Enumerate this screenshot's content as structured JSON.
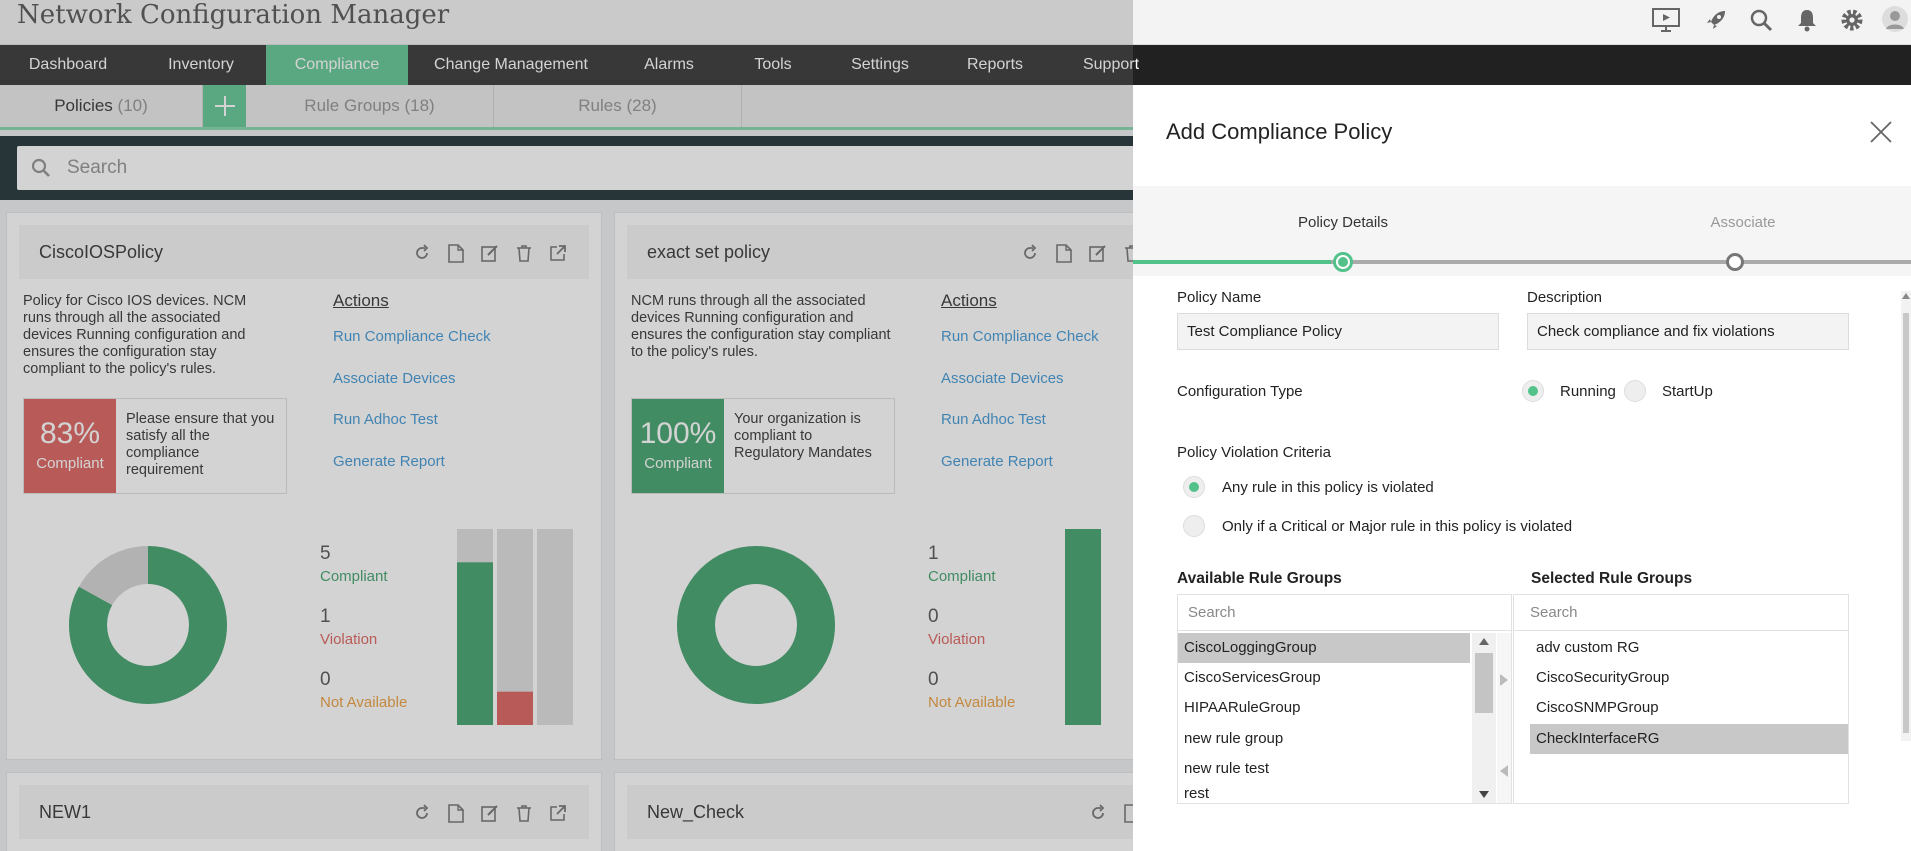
{
  "app": {
    "title": "Network Configuration Manager"
  },
  "top_icons": [
    "presentation-icon",
    "rocket-icon",
    "search-icon",
    "bell-icon",
    "gear-icon",
    "user-icon"
  ],
  "nav": {
    "items": [
      "Dashboard",
      "Inventory",
      "Compliance",
      "Change Management",
      "Alarms",
      "Tools",
      "Settings",
      "Reports",
      "Support"
    ],
    "active": "Compliance"
  },
  "subtabs": {
    "policies": {
      "label": "Policies",
      "count": "(10)"
    },
    "rule_groups": {
      "label": "Rule Groups",
      "count": "(18)"
    },
    "rules": {
      "label": "Rules",
      "count": "(28)"
    }
  },
  "search": {
    "placeholder": "Search"
  },
  "cards": [
    {
      "title": "CiscoIOSPolicy",
      "description": "Policy for Cisco IOS devices. NCM runs through all the associated devices Running configuration and ensures the configuration stay compliant to the policy's rules.",
      "actions_title": "Actions",
      "actions": [
        "Run Compliance Check",
        "Associate Devices",
        "Run Adhoc Test",
        "Generate Report"
      ],
      "score": "83%",
      "score_label": "Compliant",
      "score_color": "#d9534f",
      "message": "Please ensure that you satisfy all the compliance requirement",
      "compliant": "5",
      "compliant_label": "Compliant",
      "violation": "1",
      "violation_label": "Violation",
      "not_available": "0",
      "not_available_label": "Not Available",
      "donut_fraction": 0.83,
      "bars": [
        0.83,
        0.17,
        0.0
      ]
    },
    {
      "title": "exact set policy",
      "description": "NCM runs through all the associated devices Running configuration and ensures the configuration stay compliant to the policy's rules.",
      "actions_title": "Actions",
      "actions": [
        "Run Compliance Check",
        "Associate Devices",
        "Run Adhoc Test",
        "Generate Report"
      ],
      "score": "100%",
      "score_label": "Compliant",
      "score_color": "#2f9a5f",
      "message": "Your organization is compliant to Regulatory Mandates",
      "compliant": "1",
      "compliant_label": "Compliant",
      "violation": "0",
      "violation_label": "Violation",
      "not_available": "0",
      "not_available_label": "Not Available",
      "donut_fraction": 1.0,
      "bars": [
        1.0
      ]
    }
  ],
  "lower_cards": [
    "NEW1",
    "New_Check"
  ],
  "panel": {
    "title": "Add Compliance Policy",
    "steps": [
      "Policy Details",
      "Associate"
    ],
    "policy_name_label": "Policy Name",
    "policy_name_value": "Test Compliance Policy",
    "description_label": "Description",
    "description_value": "Check compliance and fix violations",
    "config_type_label": "Configuration Type",
    "config_options": [
      "Running",
      "StartUp"
    ],
    "config_selected": "Running",
    "violation_label": "Policy Violation Criteria",
    "violation_options": [
      "Any rule in this policy is violated",
      "Only if a Critical or Major rule in this policy is violated"
    ],
    "available_label": "Available Rule Groups",
    "selected_label": "Selected Rule Groups",
    "available_search": "Search",
    "selected_search": "Search",
    "available_groups": [
      "CiscoLoggingGroup",
      "CiscoServicesGroup",
      "HIPAARuleGroup",
      "new rule group",
      "new rule test",
      "rest"
    ],
    "selected_groups": [
      "adv custom RG",
      "CiscoSecurityGroup",
      "CiscoSNMPGroup",
      "CheckInterfaceRG"
    ]
  },
  "colors": {
    "accent": "#52c28a",
    "compliant": "#2f9a5f",
    "violation": "#d9534f",
    "not_available": "#e8962c",
    "link": "#2f8fd2",
    "nav_bg": "#212121"
  }
}
